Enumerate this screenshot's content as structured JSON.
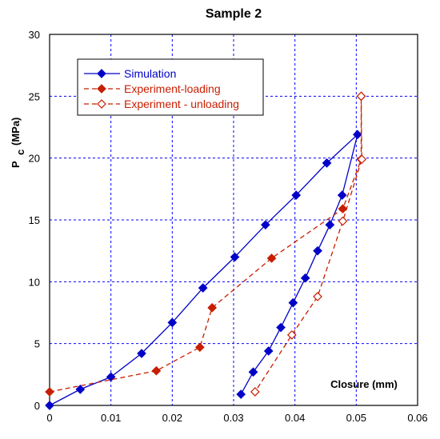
{
  "chart_data": {
    "type": "line",
    "title": "Sample 2",
    "xlabel": "Closure (mm)",
    "ylabel": "P",
    "ylabel_subscript": "c",
    "ylabel_unit": "(MPa)",
    "xlim": [
      0,
      0.06
    ],
    "ylim": [
      0,
      30
    ],
    "x_ticks": [
      "0",
      "0.01",
      "0.02",
      "0.03",
      "0.04",
      "0.05",
      "0.06"
    ],
    "y_ticks": [
      "0",
      "5",
      "10",
      "15",
      "20",
      "25",
      "30"
    ],
    "grid": true,
    "legend_position": "top-left",
    "series": [
      {
        "name": "Simulation",
        "color": "#0000c8",
        "marker": "filled-diamond",
        "line": "solid",
        "points": [
          [
            0,
            0
          ],
          [
            0.005,
            1.3
          ],
          [
            0.01,
            2.3
          ],
          [
            0.015,
            4.2
          ],
          [
            0.02,
            6.7
          ],
          [
            0.025,
            9.5
          ],
          [
            0.0302,
            12.0
          ],
          [
            0.0352,
            14.6
          ],
          [
            0.0402,
            17.0
          ],
          [
            0.0452,
            19.6
          ],
          [
            0.0502,
            21.9
          ],
          [
            0.0477,
            17.0
          ],
          [
            0.0457,
            14.6
          ],
          [
            0.0437,
            12.5
          ],
          [
            0.0417,
            10.3
          ],
          [
            0.0397,
            8.3
          ],
          [
            0.0377,
            6.3
          ],
          [
            0.0357,
            4.4
          ],
          [
            0.0332,
            2.7
          ],
          [
            0.0312,
            0.9
          ]
        ]
      },
      {
        "name": "Experiment-loading",
        "color": "#c81e00",
        "marker": "filled-diamond",
        "line": "dashed",
        "points": [
          [
            0,
            1.1
          ],
          [
            0.0174,
            2.8
          ],
          [
            0.0245,
            4.7
          ],
          [
            0.0265,
            7.9
          ],
          [
            0.0362,
            11.9
          ],
          [
            0.0478,
            15.9
          ],
          [
            0.0508,
            19.9
          ],
          [
            0.0508,
            25.0
          ]
        ]
      },
      {
        "name": "Experiment - unloading",
        "color": "#c81e00",
        "marker": "open-diamond",
        "line": "dashed",
        "points": [
          [
            0.0508,
            25.0
          ],
          [
            0.0509,
            19.9
          ],
          [
            0.0478,
            14.9
          ],
          [
            0.0437,
            8.8
          ],
          [
            0.0395,
            5.7
          ],
          [
            0.0335,
            1.1
          ]
        ]
      }
    ]
  }
}
